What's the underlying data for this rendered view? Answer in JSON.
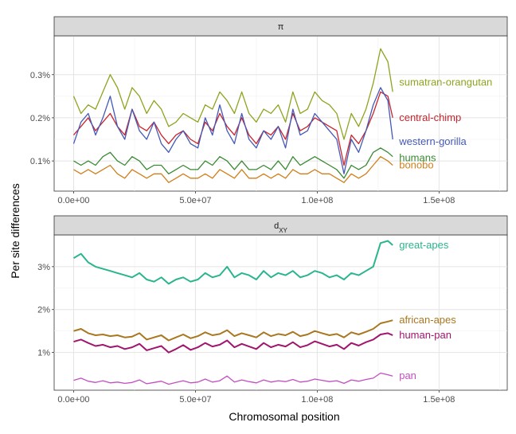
{
  "chart_data": {
    "type": "line",
    "ylabel": "Per site differences",
    "xlabel": "Chromosomal position",
    "xlim": [
      -8000000,
      178000000
    ],
    "x_ticks": [
      0,
      50000000,
      100000000,
      150000000
    ],
    "x_tick_labels": [
      "0.0e+00",
      "5.0e+07",
      "1.0e+08",
      "1.5e+08"
    ],
    "panels": [
      {
        "strip": "π",
        "ylim": [
          0.0003,
          0.0039
        ],
        "y_ticks": [
          0.001,
          0.002,
          0.003
        ],
        "y_tick_labels": [
          "0.1%",
          "0.2%",
          "0.3%"
        ],
        "x": [
          0,
          3000000,
          6000000,
          9000000,
          12000000,
          15000000,
          18000000,
          21000000,
          24000000,
          27000000,
          30000000,
          33000000,
          36000000,
          39000000,
          42000000,
          45000000,
          48000000,
          51000000,
          54000000,
          57000000,
          60000000,
          63000000,
          66000000,
          69000000,
          72000000,
          75000000,
          78000000,
          81000000,
          84000000,
          87000000,
          90000000,
          93000000,
          96000000,
          99000000,
          102000000,
          105000000,
          108000000,
          111000000,
          114000000,
          117000000,
          120000000,
          123000000,
          126000000,
          129000000,
          131000000
        ],
        "series": [
          {
            "name": "sumatran-orangutan",
            "color": "#8fa31f",
            "values": [
              0.0025,
              0.0021,
              0.0023,
              0.0022,
              0.0026,
              0.003,
              0.0027,
              0.0022,
              0.0027,
              0.0025,
              0.0021,
              0.0024,
              0.0022,
              0.0018,
              0.0019,
              0.0021,
              0.002,
              0.0019,
              0.0023,
              0.0022,
              0.0026,
              0.0024,
              0.0021,
              0.0026,
              0.0021,
              0.0019,
              0.0022,
              0.0021,
              0.0023,
              0.0019,
              0.0026,
              0.0021,
              0.0022,
              0.0026,
              0.0024,
              0.0023,
              0.0021,
              0.0015,
              0.0021,
              0.0018,
              0.0022,
              0.0028,
              0.0036,
              0.0033,
              0.0026
            ]
          },
          {
            "name": "central-chimp",
            "color": "#c9242c",
            "values": [
              0.0016,
              0.0018,
              0.002,
              0.0017,
              0.0019,
              0.0021,
              0.0018,
              0.0016,
              0.0022,
              0.0018,
              0.0017,
              0.0019,
              0.0016,
              0.0014,
              0.0016,
              0.0017,
              0.0015,
              0.0014,
              0.0019,
              0.0017,
              0.0021,
              0.0018,
              0.0016,
              0.002,
              0.0016,
              0.0014,
              0.0017,
              0.0016,
              0.0018,
              0.0015,
              0.0021,
              0.0017,
              0.0018,
              0.002,
              0.0019,
              0.0018,
              0.0017,
              0.0009,
              0.0016,
              0.0014,
              0.0017,
              0.0021,
              0.0026,
              0.0025,
              0.002
            ]
          },
          {
            "name": "western-gorilla",
            "color": "#4459b8",
            "values": [
              0.0014,
              0.0019,
              0.0021,
              0.0016,
              0.002,
              0.0025,
              0.0018,
              0.0015,
              0.0022,
              0.0017,
              0.0015,
              0.0019,
              0.0014,
              0.0012,
              0.0015,
              0.0017,
              0.0014,
              0.0013,
              0.002,
              0.0016,
              0.0023,
              0.0017,
              0.0014,
              0.0021,
              0.0015,
              0.0013,
              0.0017,
              0.0015,
              0.0018,
              0.0013,
              0.0022,
              0.0016,
              0.0017,
              0.0021,
              0.0019,
              0.0017,
              0.0015,
              0.0007,
              0.0015,
              0.0012,
              0.0017,
              0.0023,
              0.0027,
              0.0024,
              0.0015
            ]
          },
          {
            "name": "bonobo",
            "color": "#d17f1a",
            "values": [
              0.0008,
              0.0007,
              0.0008,
              0.0007,
              0.0008,
              0.0009,
              0.0007,
              0.0006,
              0.0008,
              0.0007,
              0.0006,
              0.0007,
              0.0007,
              0.0005,
              0.0006,
              0.0007,
              0.0006,
              0.0006,
              0.0007,
              0.0006,
              0.0008,
              0.0007,
              0.0006,
              0.0008,
              0.0006,
              0.0006,
              0.0007,
              0.0006,
              0.0007,
              0.0006,
              0.0008,
              0.0007,
              0.0007,
              0.0008,
              0.0007,
              0.0007,
              0.0006,
              0.0005,
              0.0007,
              0.0006,
              0.0007,
              0.0009,
              0.0011,
              0.001,
              0.0009
            ]
          },
          {
            "name": "humans",
            "color": "#3a8a33",
            "values": [
              0.001,
              0.0009,
              0.001,
              0.0009,
              0.0011,
              0.0012,
              0.001,
              0.0009,
              0.0011,
              0.001,
              0.0008,
              0.0009,
              0.0009,
              0.0007,
              0.0008,
              0.0009,
              0.0008,
              0.0008,
              0.001,
              0.0009,
              0.0011,
              0.001,
              0.0008,
              0.001,
              0.0008,
              0.0008,
              0.0009,
              0.0008,
              0.001,
              0.0008,
              0.0011,
              0.0009,
              0.001,
              0.0011,
              0.001,
              0.0009,
              0.0008,
              0.0006,
              0.0009,
              0.0008,
              0.0009,
              0.0012,
              0.0013,
              0.0012,
              0.0011
            ]
          }
        ]
      },
      {
        "strip": "dXY",
        "ylim": [
          0.0012,
          0.0374
        ],
        "y_ticks": [
          0.01,
          0.02,
          0.03
        ],
        "y_tick_labels": [
          "1%",
          "2%",
          "3%"
        ],
        "x": [
          0,
          3000000,
          6000000,
          9000000,
          12000000,
          15000000,
          18000000,
          21000000,
          24000000,
          27000000,
          30000000,
          33000000,
          36000000,
          39000000,
          42000000,
          45000000,
          48000000,
          51000000,
          54000000,
          57000000,
          60000000,
          63000000,
          66000000,
          69000000,
          72000000,
          75000000,
          78000000,
          81000000,
          84000000,
          87000000,
          90000000,
          93000000,
          96000000,
          99000000,
          102000000,
          105000000,
          108000000,
          111000000,
          114000000,
          117000000,
          120000000,
          123000000,
          126000000,
          129000000,
          131000000
        ],
        "series": [
          {
            "name": "great-apes",
            "color": "#2ab58e",
            "values": [
              0.032,
              0.033,
              0.031,
              0.03,
              0.0295,
              0.029,
              0.0285,
              0.028,
              0.0275,
              0.0285,
              0.027,
              0.0265,
              0.0275,
              0.026,
              0.027,
              0.0275,
              0.0265,
              0.027,
              0.0285,
              0.0275,
              0.028,
              0.03,
              0.0275,
              0.0285,
              0.028,
              0.027,
              0.029,
              0.0275,
              0.0285,
              0.028,
              0.029,
              0.0275,
              0.028,
              0.029,
              0.0285,
              0.0275,
              0.028,
              0.027,
              0.0285,
              0.028,
              0.029,
              0.03,
              0.0355,
              0.036,
              0.035
            ]
          },
          {
            "name": "african-apes",
            "color": "#a8771f",
            "values": [
              0.015,
              0.0155,
              0.0145,
              0.014,
              0.0142,
              0.0138,
              0.014,
              0.0135,
              0.0137,
              0.0145,
              0.013,
              0.0135,
              0.014,
              0.0128,
              0.0135,
              0.0142,
              0.0133,
              0.0138,
              0.0147,
              0.014,
              0.0143,
              0.0152,
              0.0138,
              0.0145,
              0.014,
              0.0135,
              0.0147,
              0.0138,
              0.0143,
              0.014,
              0.0148,
              0.0138,
              0.0142,
              0.015,
              0.0145,
              0.014,
              0.0143,
              0.0135,
              0.0147,
              0.0142,
              0.0148,
              0.0155,
              0.0168,
              0.0172,
              0.0175
            ]
          },
          {
            "name": "human-pan",
            "color": "#a0166e",
            "values": [
              0.0125,
              0.013,
              0.0122,
              0.0115,
              0.0118,
              0.0112,
              0.0115,
              0.0108,
              0.0112,
              0.012,
              0.0105,
              0.011,
              0.0115,
              0.01,
              0.0108,
              0.0117,
              0.0106,
              0.0112,
              0.0122,
              0.0114,
              0.0118,
              0.0128,
              0.0112,
              0.012,
              0.0114,
              0.0108,
              0.0122,
              0.0112,
              0.0118,
              0.0114,
              0.0124,
              0.0112,
              0.0117,
              0.0126,
              0.012,
              0.0114,
              0.0118,
              0.0108,
              0.0122,
              0.0116,
              0.0124,
              0.013,
              0.0142,
              0.0145,
              0.014
            ]
          },
          {
            "name": "pan",
            "color": "#c24fc1",
            "values": [
              0.0035,
              0.004,
              0.0033,
              0.003,
              0.0034,
              0.0029,
              0.0031,
              0.0028,
              0.003,
              0.0036,
              0.0027,
              0.003,
              0.0033,
              0.0026,
              0.003,
              0.0034,
              0.0029,
              0.0031,
              0.0038,
              0.0031,
              0.0034,
              0.0045,
              0.0031,
              0.0036,
              0.0032,
              0.0029,
              0.0036,
              0.0031,
              0.0034,
              0.0032,
              0.0037,
              0.0031,
              0.0033,
              0.0038,
              0.0035,
              0.0032,
              0.0034,
              0.0028,
              0.0036,
              0.0033,
              0.0037,
              0.004,
              0.0052,
              0.0048,
              0.0045
            ]
          }
        ]
      }
    ]
  }
}
